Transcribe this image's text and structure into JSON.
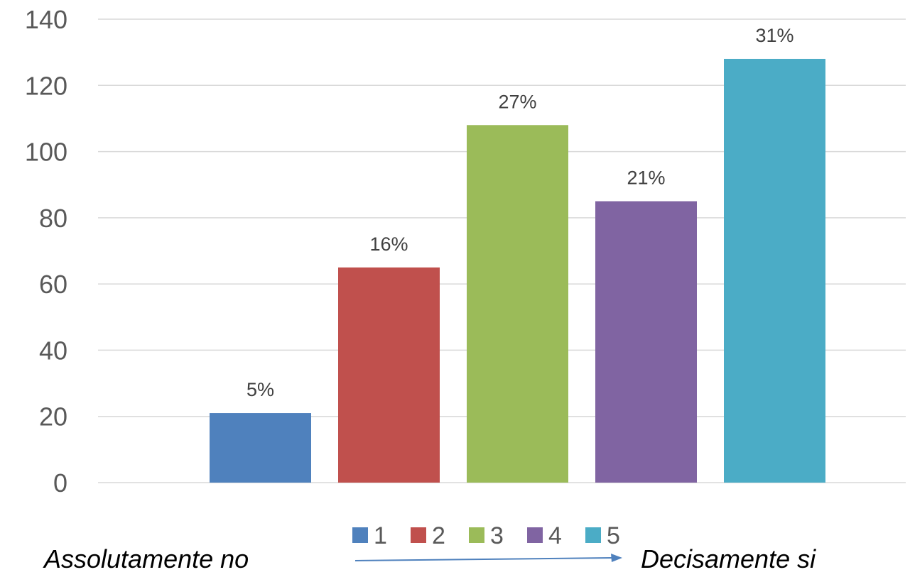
{
  "chart_data": {
    "type": "bar",
    "categories": [
      "1",
      "2",
      "3",
      "4",
      "5"
    ],
    "values": [
      21,
      65,
      108,
      85,
      128
    ],
    "data_labels": [
      "5%",
      "16%",
      "27%",
      "21%",
      "31%"
    ],
    "ylim": [
      0,
      140
    ],
    "yticks": [
      0,
      20,
      40,
      60,
      80,
      100,
      120,
      140
    ],
    "grid": true,
    "legend": "bottom",
    "colors": [
      "#4f81bd",
      "#c0504d",
      "#9bbb59",
      "#8064a2",
      "#4bacc6"
    ],
    "axis_note": {
      "left": "Assolutamente no",
      "right": "Decisamente si",
      "arrow_color": "#4f81bd"
    }
  }
}
